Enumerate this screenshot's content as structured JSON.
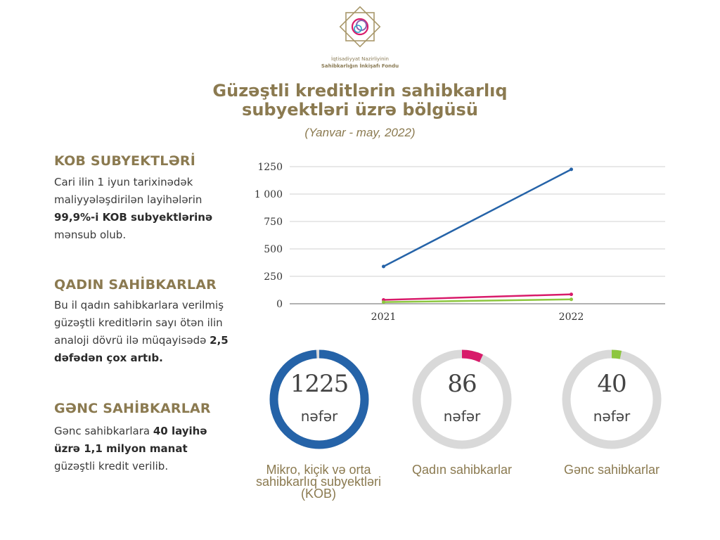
{
  "header": {
    "org_line1": "İqtisadiyyat Nazirliyinin",
    "org_line2": "Sahibkarlığın İnkişafı Fondu",
    "title_line1": "Güzəştli kreditlərin sahibkarlıq",
    "title_line2": "subyektləri üzrə bölgüsü",
    "subtitle": "(Yanvar - may, 2022)"
  },
  "sections": [
    {
      "heading": "KOB SUBYEKTLƏRİ",
      "text_before": "Cari ilin 1 iyun tarixinədək maliyyələşdirilən layihələrin ",
      "bold": "99,9%-i KOB subyektlərinə",
      "text_after": " mənsub olub."
    },
    {
      "heading": "QADIN SAHİBKARLAR",
      "text_before": "Bu il qadın sahibkarlara verilmiş güzəştli kreditlərin sayı ötən ilin analoji dövrü ilə müqayisədə ",
      "bold": "2,5 dəfədən çox artıb.",
      "text_after": ""
    },
    {
      "heading": "GƏNC SAHİBKARLAR",
      "text_before": "Gənc sahibkarlara ",
      "bold": "40 layihə üzrə 1,1 milyon manat",
      "text_after": " güzəştli kredit verilib."
    }
  ],
  "chart_data": [
    {
      "type": "line",
      "x": [
        "2021",
        "2022"
      ],
      "yticks": [
        "0",
        "250",
        "500",
        "750",
        "1 000",
        "1250"
      ],
      "ylim": [
        0,
        1250
      ],
      "grid": true,
      "series": [
        {
          "values": [
            340,
            1225
          ],
          "color": "#2563a8"
        },
        {
          "values": [
            35,
            86
          ],
          "color": "#d81b6a"
        },
        {
          "values": [
            15,
            40
          ],
          "color": "#8dc63f"
        }
      ]
    },
    {
      "type": "pie",
      "donuts": [
        {
          "value": "1225",
          "unit": "nəfər",
          "label": "Mikro, kiçik və orta sahibkarlıq subyektləri (KOB)",
          "fraction": 0.99,
          "color": "#2563a8"
        },
        {
          "value": "86",
          "unit": "nəfər",
          "label": "Qadın sahibkarlar",
          "fraction": 0.07,
          "color": "#d81b6a"
        },
        {
          "value": "40",
          "unit": "nəfər",
          "label": "Gənc sahibkarlar",
          "fraction": 0.032,
          "color": "#8dc63f"
        }
      ]
    }
  ]
}
